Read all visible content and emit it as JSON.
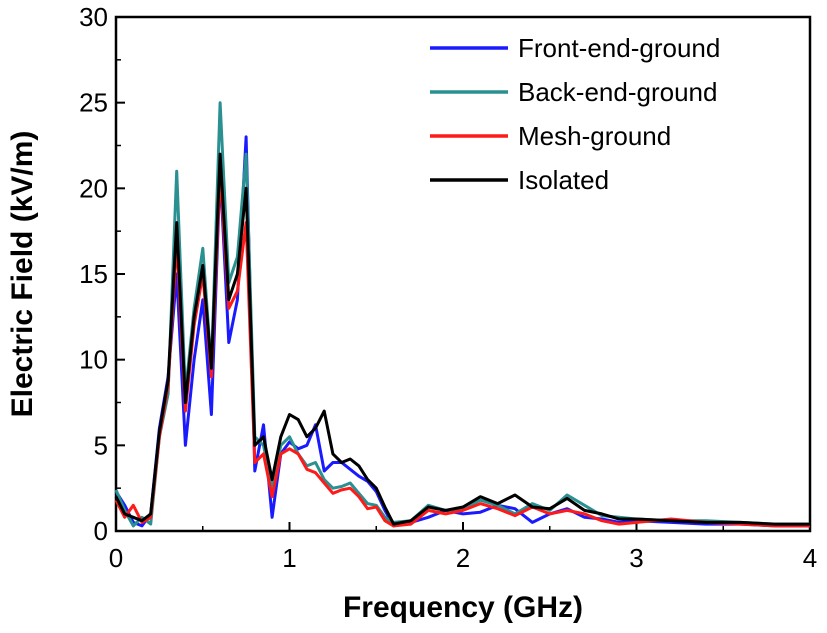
{
  "chart_data": {
    "type": "line",
    "xlabel": "Frequency (GHz)",
    "ylabel": "Electric Field (kV/m)",
    "xlim": [
      0,
      4
    ],
    "ylim": [
      0,
      30
    ],
    "xticks": [
      0,
      1,
      2,
      3,
      4
    ],
    "yticks": [
      0,
      5,
      10,
      15,
      20,
      25,
      30
    ],
    "legend_position": "top-right",
    "series": [
      {
        "name": "Front-end-ground",
        "color": "#1a1aff",
        "x": [
          0,
          0.05,
          0.1,
          0.15,
          0.2,
          0.25,
          0.3,
          0.35,
          0.4,
          0.45,
          0.5,
          0.55,
          0.6,
          0.65,
          0.7,
          0.75,
          0.8,
          0.85,
          0.9,
          0.95,
          1.0,
          1.05,
          1.1,
          1.15,
          1.2,
          1.25,
          1.3,
          1.35,
          1.4,
          1.45,
          1.5,
          1.55,
          1.6,
          1.7,
          1.8,
          1.9,
          2.0,
          2.1,
          2.2,
          2.3,
          2.4,
          2.5,
          2.6,
          2.7,
          2.8,
          2.9,
          3.0,
          3.2,
          3.4,
          3.6,
          3.8,
          4.0
        ],
        "y": [
          2.3,
          1.5,
          0.5,
          0.3,
          1.0,
          6.0,
          9.0,
          15.0,
          5.0,
          10.0,
          13.5,
          6.8,
          21.0,
          11.0,
          13.5,
          23.0,
          3.5,
          6.2,
          0.8,
          4.5,
          5.2,
          4.8,
          5.0,
          6.2,
          3.5,
          4.0,
          4.0,
          3.6,
          3.2,
          2.9,
          2.3,
          1.2,
          0.3,
          0.5,
          0.8,
          1.2,
          1.0,
          1.1,
          1.5,
          1.3,
          0.5,
          1.0,
          1.3,
          0.8,
          0.7,
          0.5,
          0.6,
          0.5,
          0.4,
          0.4,
          0.3,
          0.3
        ]
      },
      {
        "name": "Back-end-ground",
        "color": "#2a9090",
        "x": [
          0,
          0.05,
          0.1,
          0.15,
          0.2,
          0.25,
          0.3,
          0.35,
          0.4,
          0.45,
          0.5,
          0.55,
          0.6,
          0.65,
          0.7,
          0.75,
          0.8,
          0.85,
          0.9,
          0.95,
          1.0,
          1.05,
          1.1,
          1.15,
          1.2,
          1.25,
          1.3,
          1.35,
          1.4,
          1.45,
          1.5,
          1.55,
          1.6,
          1.7,
          1.8,
          1.9,
          2.0,
          2.1,
          2.2,
          2.3,
          2.4,
          2.5,
          2.6,
          2.7,
          2.8,
          2.9,
          3.0,
          3.2,
          3.4,
          3.6,
          3.8,
          4.0
        ],
        "y": [
          2.4,
          1.2,
          0.3,
          0.8,
          0.4,
          5.5,
          8.0,
          21.0,
          8.0,
          13.0,
          16.5,
          9.5,
          25.0,
          14.5,
          16.0,
          22.0,
          5.5,
          5.0,
          2.5,
          5.0,
          5.5,
          4.5,
          3.8,
          4.0,
          3.0,
          2.5,
          2.6,
          2.8,
          2.2,
          1.6,
          1.5,
          0.8,
          0.5,
          0.6,
          1.5,
          1.2,
          1.3,
          1.8,
          1.5,
          1.0,
          1.6,
          1.2,
          2.1,
          1.5,
          0.9,
          0.8,
          0.7,
          0.6,
          0.6,
          0.5,
          0.4,
          0.4
        ]
      },
      {
        "name": "Mesh-ground",
        "color": "#ff1a1a",
        "x": [
          0,
          0.05,
          0.1,
          0.15,
          0.2,
          0.25,
          0.3,
          0.35,
          0.4,
          0.45,
          0.5,
          0.55,
          0.6,
          0.65,
          0.7,
          0.75,
          0.8,
          0.85,
          0.9,
          0.95,
          1.0,
          1.05,
          1.1,
          1.15,
          1.2,
          1.25,
          1.3,
          1.35,
          1.4,
          1.45,
          1.5,
          1.55,
          1.6,
          1.7,
          1.8,
          1.9,
          2.0,
          2.1,
          2.2,
          2.3,
          2.4,
          2.5,
          2.6,
          2.7,
          2.8,
          2.9,
          3.0,
          3.2,
          3.4,
          3.6,
          3.8,
          4.0
        ],
        "y": [
          1.8,
          0.8,
          1.5,
          0.5,
          0.8,
          5.5,
          8.5,
          17.0,
          7.0,
          12.0,
          15.0,
          9.0,
          21.0,
          13.0,
          14.0,
          18.0,
          4.0,
          4.5,
          2.0,
          4.5,
          4.8,
          4.5,
          3.6,
          3.4,
          2.8,
          2.2,
          2.4,
          2.5,
          2.0,
          1.3,
          1.4,
          0.6,
          0.3,
          0.4,
          1.2,
          1.0,
          1.2,
          1.6,
          1.3,
          0.9,
          1.4,
          1.0,
          1.2,
          1.0,
          0.6,
          0.4,
          0.5,
          0.7,
          0.5,
          0.4,
          0.3,
          0.3
        ]
      },
      {
        "name": "Isolated",
        "color": "#000000",
        "x": [
          0,
          0.05,
          0.1,
          0.15,
          0.2,
          0.25,
          0.3,
          0.35,
          0.4,
          0.45,
          0.5,
          0.55,
          0.6,
          0.65,
          0.7,
          0.75,
          0.8,
          0.85,
          0.9,
          0.95,
          1.0,
          1.05,
          1.1,
          1.15,
          1.2,
          1.25,
          1.3,
          1.35,
          1.4,
          1.45,
          1.5,
          1.55,
          1.6,
          1.7,
          1.8,
          1.9,
          2.0,
          2.1,
          2.2,
          2.3,
          2.4,
          2.5,
          2.6,
          2.7,
          2.8,
          2.9,
          3.0,
          3.2,
          3.4,
          3.6,
          3.8,
          4.0
        ],
        "y": [
          2.0,
          1.0,
          0.8,
          0.6,
          1.0,
          5.8,
          8.8,
          18.0,
          7.5,
          12.5,
          15.5,
          9.5,
          22.0,
          13.5,
          15.0,
          20.0,
          5.0,
          5.5,
          3.0,
          5.5,
          6.8,
          6.5,
          5.5,
          6.0,
          7.0,
          4.5,
          4.0,
          4.2,
          3.8,
          3.0,
          2.5,
          1.4,
          0.4,
          0.6,
          1.4,
          1.2,
          1.4,
          2.0,
          1.6,
          2.1,
          1.4,
          1.3,
          1.9,
          1.2,
          1.0,
          0.7,
          0.7,
          0.6,
          0.5,
          0.5,
          0.4,
          0.4
        ]
      }
    ]
  }
}
